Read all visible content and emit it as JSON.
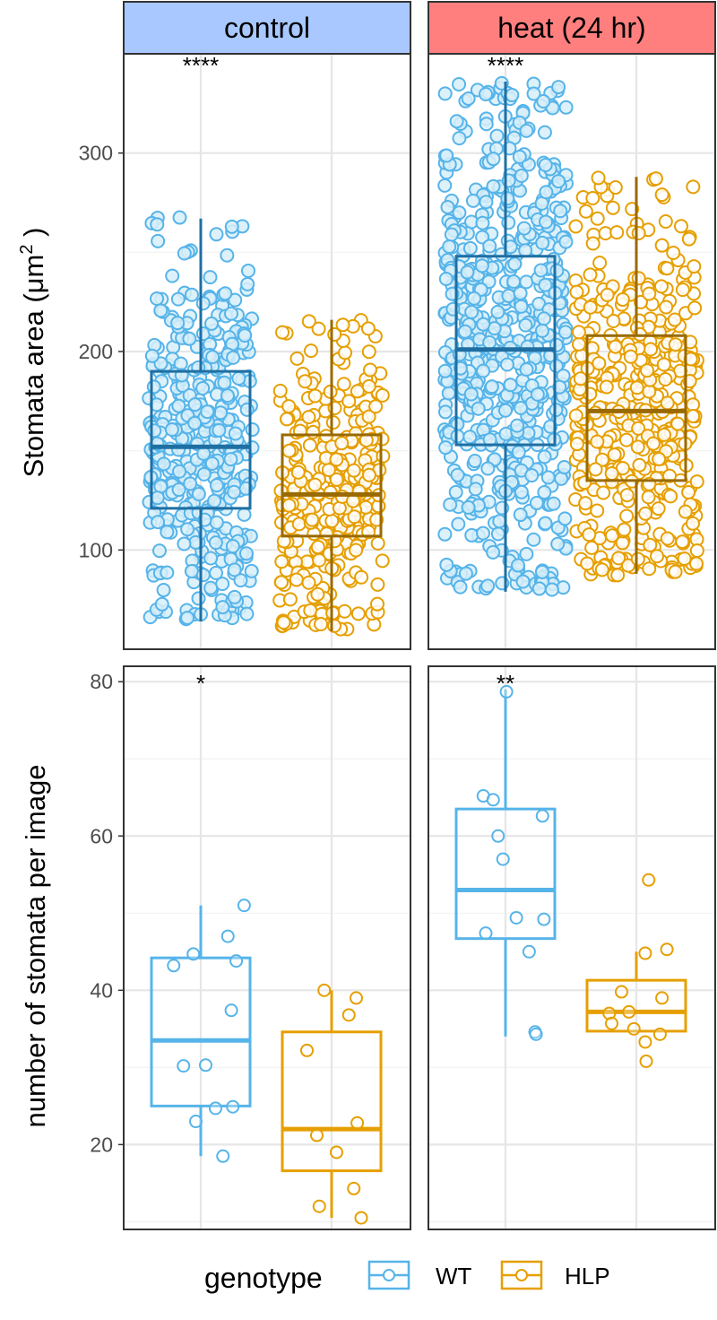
{
  "colors": {
    "wt": "#56B4E9",
    "wt_dark": "#1F6FA3",
    "hlp": "#E69F00",
    "hlp_dark": "#9A6A00",
    "strip_control": "#A9C8FF",
    "strip_heat": "#FF7F7F"
  },
  "legend": {
    "title": "genotype",
    "items": [
      {
        "label": "WT",
        "color": "#56B4E9"
      },
      {
        "label": "HLP",
        "color": "#E69F00"
      }
    ]
  },
  "chart_data": [
    {
      "type": "box",
      "facet": "control",
      "ylabel": "Stomata area (μm²)",
      "ylim": [
        50,
        350
      ],
      "yticks": [
        100,
        200,
        300
      ],
      "significance": "****",
      "series": [
        {
          "name": "WT",
          "stats": {
            "whisker_low": 64,
            "q1": 121,
            "median": 152,
            "q3": 190,
            "whisker_high": 267
          },
          "points_n": 380,
          "points_range": [
            65,
            268
          ]
        },
        {
          "name": "HLP",
          "stats": {
            "whisker_low": 59,
            "q1": 107,
            "median": 128,
            "q3": 158,
            "whisker_high": 216
          },
          "points_n": 300,
          "points_range": [
            60,
            217
          ]
        }
      ]
    },
    {
      "type": "box",
      "facet": "heat (24 hr)",
      "ylabel": "Stomata area (μm²)",
      "ylim": [
        50,
        350
      ],
      "yticks": [
        100,
        200,
        300
      ],
      "significance": "****",
      "series": [
        {
          "name": "WT",
          "stats": {
            "whisker_low": 79,
            "q1": 153,
            "median": 201,
            "q3": 248,
            "whisker_high": 336
          },
          "points_n": 600,
          "points_range": [
            80,
            336
          ]
        },
        {
          "name": "HLP",
          "stats": {
            "whisker_low": 88,
            "q1": 135,
            "median": 170,
            "q3": 208,
            "whisker_high": 288
          },
          "points_n": 420,
          "points_range": [
            87,
            288
          ]
        }
      ]
    },
    {
      "type": "box",
      "facet": "control",
      "ylabel": "number of stomata per image",
      "ylim": [
        9,
        82
      ],
      "yticks": [
        20,
        40,
        60,
        80
      ],
      "significance": "*",
      "series": [
        {
          "name": "WT",
          "stats": {
            "whisker_low": 18.5,
            "q1": 25,
            "median": 33.5,
            "q3": 44.2,
            "whisker_high": 51
          },
          "points": [
            [
              -0.55,
              43.2
            ],
            [
              -0.15,
              44.7
            ],
            [
              0.88,
              51
            ],
            [
              0.55,
              47
            ],
            [
              0.72,
              43.8
            ],
            [
              0.62,
              37.4
            ],
            [
              -0.35,
              30.2
            ],
            [
              0.1,
              30.3
            ],
            [
              -0.1,
              23
            ],
            [
              0.3,
              24.7
            ],
            [
              0.65,
              24.9
            ],
            [
              0.45,
              18.5
            ]
          ]
        },
        {
          "name": "HLP",
          "stats": {
            "whisker_low": 10.5,
            "q1": 16.6,
            "median": 22,
            "q3": 34.6,
            "whisker_high": 40
          },
          "points": [
            [
              -0.15,
              40
            ],
            [
              0.35,
              36.8
            ],
            [
              0.5,
              39
            ],
            [
              -0.5,
              32.2
            ],
            [
              -0.3,
              21.2
            ],
            [
              0.52,
              22.8
            ],
            [
              0.1,
              19
            ],
            [
              -0.25,
              12
            ],
            [
              0.45,
              14.3
            ],
            [
              0.6,
              10.5
            ]
          ]
        }
      ]
    },
    {
      "type": "box",
      "facet": "heat (24 hr)",
      "ylabel": "number of stomata per image",
      "ylim": [
        9,
        82
      ],
      "yticks": [
        20,
        40,
        60,
        80
      ],
      "significance": "**",
      "series": [
        {
          "name": "WT",
          "stats": {
            "whisker_low": 34,
            "q1": 46.7,
            "median": 53,
            "q3": 63.5,
            "whisker_high": 79
          },
          "points": [
            [
              0.02,
              78.7
            ],
            [
              -0.45,
              65.2
            ],
            [
              -0.25,
              64.7
            ],
            [
              -0.15,
              60
            ],
            [
              -0.05,
              57
            ],
            [
              0.75,
              62.6
            ],
            [
              0.22,
              49.4
            ],
            [
              0.78,
              49.2
            ],
            [
              -0.4,
              47.4
            ],
            [
              0.48,
              45
            ],
            [
              0.6,
              34.6
            ],
            [
              0.62,
              34.3
            ]
          ]
        },
        {
          "name": "HLP",
          "stats": {
            "whisker_low": 34.7,
            "q1": 34.7,
            "median": 37.2,
            "q3": 41.3,
            "whisker_high": 45
          },
          "points": [
            [
              0.25,
              54.3
            ],
            [
              0.18,
              44.8
            ],
            [
              0.62,
              45.3
            ],
            [
              -0.3,
              39.8
            ],
            [
              0.52,
              39
            ],
            [
              -0.55,
              37
            ],
            [
              -0.15,
              37.2
            ],
            [
              -0.5,
              35.7
            ],
            [
              -0.05,
              35
            ],
            [
              0.48,
              34.3
            ],
            [
              0.18,
              33.3
            ],
            [
              0.2,
              30.8
            ]
          ]
        }
      ]
    }
  ]
}
